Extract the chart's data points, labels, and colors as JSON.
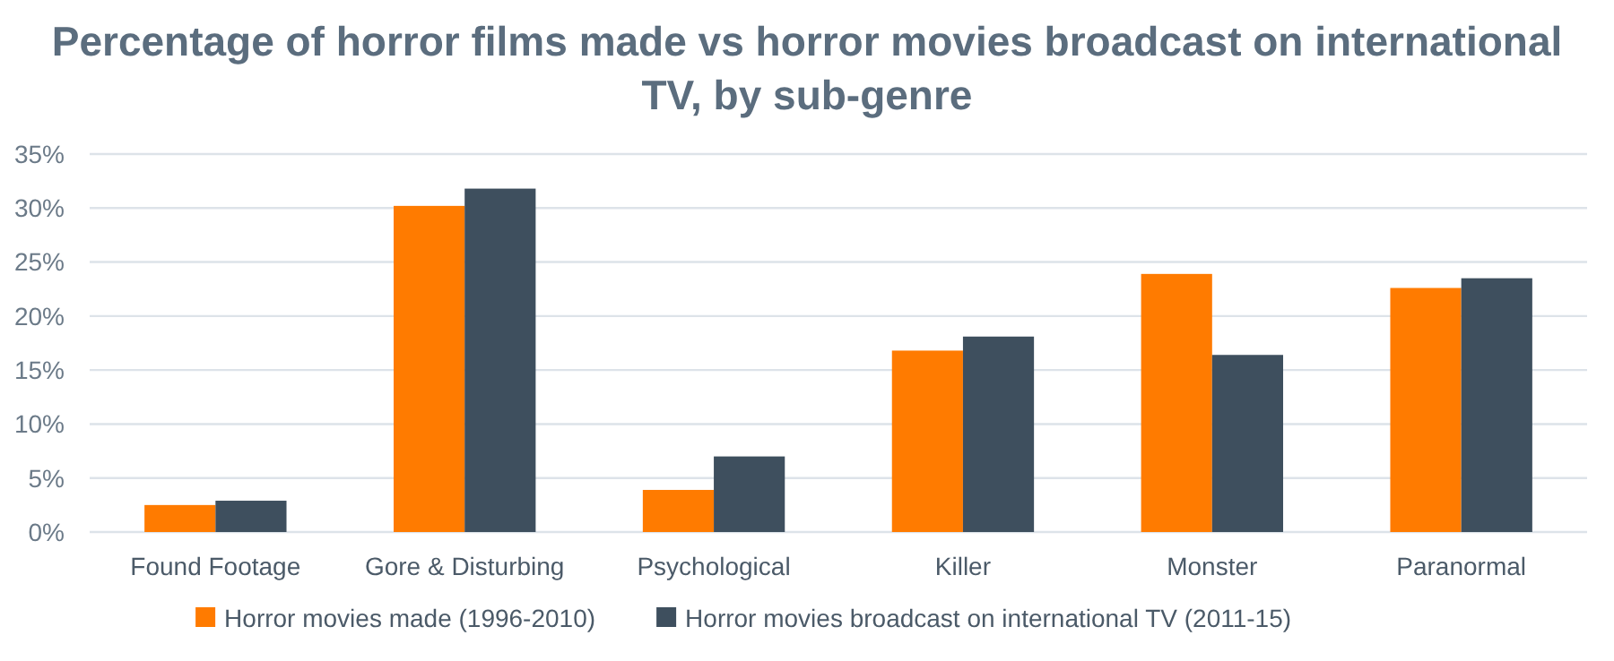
{
  "chart_data": {
    "type": "bar",
    "title": "Percentage of horror films made vs horror movies broadcast on international TV, by sub-genre",
    "categories": [
      "Found Footage",
      "Gore & Disturbing",
      "Psychological",
      "Killer",
      "Monster",
      "Paranormal"
    ],
    "series": [
      {
        "name": "Horror movies made (1996-2010)",
        "color": "#ff7b00",
        "values": [
          2.5,
          30.2,
          3.9,
          16.8,
          23.9,
          22.6
        ]
      },
      {
        "name": "Horror movies broadcast on international TV (2011-15)",
        "color": "#3e4f5e",
        "values": [
          2.9,
          31.8,
          7.0,
          18.1,
          16.4,
          23.5
        ]
      }
    ],
    "ylim": [
      0,
      35
    ],
    "yticks": [
      {
        "value": 0,
        "label": "0%"
      },
      {
        "value": 5,
        "label": "5%"
      },
      {
        "value": 10,
        "label": "10%"
      },
      {
        "value": 15,
        "label": "15%"
      },
      {
        "value": 20,
        "label": "20%"
      },
      {
        "value": 25,
        "label": "25%"
      },
      {
        "value": 30,
        "label": "30%"
      },
      {
        "value": 35,
        "label": "35%"
      }
    ],
    "grid": "y",
    "legend": "bottom"
  }
}
